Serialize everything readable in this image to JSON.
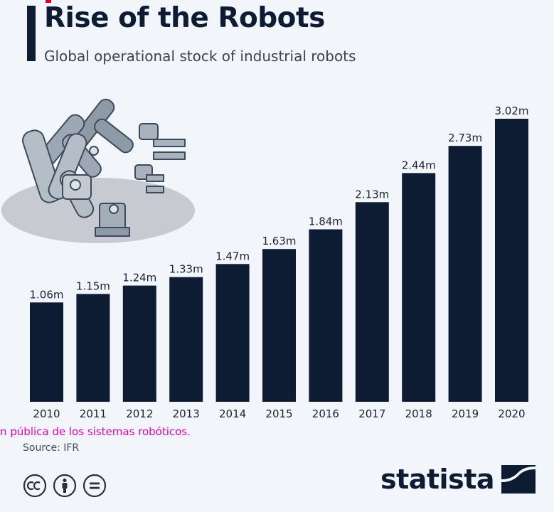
{
  "header": {
    "title": "Rise of the Robots",
    "subtitle": "Global operational stock of industrial robots"
  },
  "overlay_text": "n pública de los sistemas robóticos.",
  "footer": {
    "source": "Source: IFR",
    "brand": "statista"
  },
  "icons": {
    "license": [
      "cc-icon",
      "attribution-icon",
      "no-derivatives-icon"
    ],
    "brand_logo": "statista-logo-icon",
    "illustration": "robot-arms-illustration"
  },
  "colors": {
    "background": "#f2f6fa",
    "bars": "#0d1b33",
    "text": "#1a2233",
    "overlay_text": "#e800c8",
    "accent_mark": "#e3001b"
  },
  "chart_data": {
    "type": "bar",
    "title": "Rise of the Robots",
    "subtitle": "Global operational stock of industrial robots",
    "xlabel": "",
    "ylabel": "",
    "unit": "m",
    "categories": [
      "2010",
      "2011",
      "2012",
      "2013",
      "2014",
      "2015",
      "2016",
      "2017",
      "2018",
      "2019",
      "2020"
    ],
    "values": [
      1.06,
      1.15,
      1.24,
      1.33,
      1.47,
      1.63,
      1.84,
      2.13,
      2.44,
      2.73,
      3.02
    ],
    "value_labels": [
      "1.06m",
      "1.15m",
      "1.24m",
      "1.33m",
      "1.47m",
      "1.63m",
      "1.84m",
      "2.13m",
      "2.44m",
      "2.73m",
      "3.02m"
    ],
    "ylim": [
      0,
      3.02
    ],
    "grid": false,
    "legend": "none"
  }
}
